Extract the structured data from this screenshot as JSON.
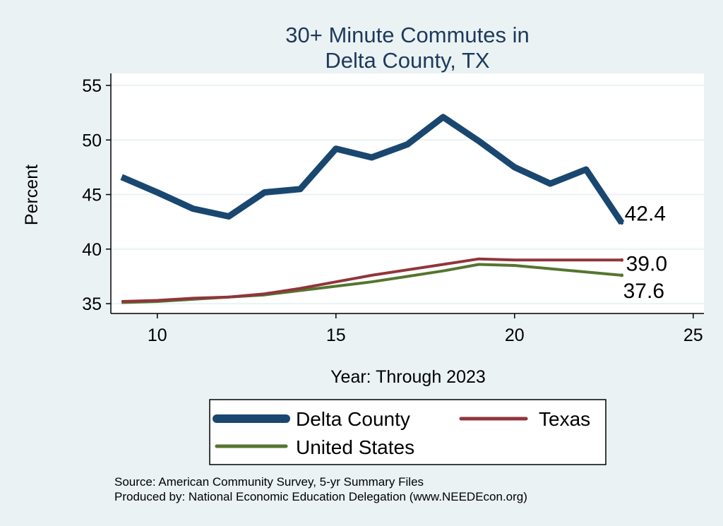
{
  "chart_data": {
    "type": "line",
    "title": [
      "30+ Minute Commutes in",
      "Delta County, TX"
    ],
    "xlabel": "Year: Through 2023",
    "ylabel": "Percent",
    "xlim": [
      8.7,
      25.3
    ],
    "ylim": [
      34.1,
      56.1
    ],
    "xticks": [
      10,
      15,
      20,
      25
    ],
    "yticks": [
      35,
      40,
      45,
      50,
      55
    ],
    "grid": true,
    "legend_position": "bottom",
    "series": [
      {
        "name": "Delta County",
        "color": "#1a476f",
        "style": "thick",
        "x": [
          9,
          10,
          11,
          12,
          13,
          14,
          15,
          16,
          17,
          18,
          19,
          20,
          21,
          22,
          23
        ],
        "values": [
          46.6,
          45.2,
          43.7,
          43.0,
          45.2,
          45.5,
          49.2,
          48.4,
          49.6,
          52.1,
          49.9,
          47.5,
          46.0,
          47.3,
          42.4
        ],
        "end_label": "42.4"
      },
      {
        "name": "Texas",
        "color": "#90353b",
        "style": "medium",
        "x": [
          9,
          10,
          11,
          12,
          13,
          14,
          15,
          16,
          17,
          18,
          19,
          20,
          21,
          22,
          23
        ],
        "values": [
          35.2,
          35.3,
          35.5,
          35.6,
          35.9,
          36.4,
          37.0,
          37.6,
          38.1,
          38.6,
          39.1,
          39.0,
          39.0,
          39.0,
          39.0
        ],
        "end_label": "39.0"
      },
      {
        "name": "United States",
        "color": "#55752f",
        "style": "medium",
        "x": [
          9,
          10,
          11,
          12,
          13,
          14,
          15,
          16,
          17,
          18,
          19,
          20,
          21,
          22,
          23
        ],
        "values": [
          35.1,
          35.2,
          35.4,
          35.6,
          35.8,
          36.2,
          36.6,
          37.0,
          37.5,
          38.0,
          38.6,
          38.5,
          38.2,
          37.9,
          37.6
        ],
        "end_label": "37.6"
      }
    ],
    "source_lines": [
      "Source: American Community Survey, 5-yr Summary Files",
      "Produced by: National Economic Education Delegation (www.NEEDEcon.org)"
    ]
  }
}
